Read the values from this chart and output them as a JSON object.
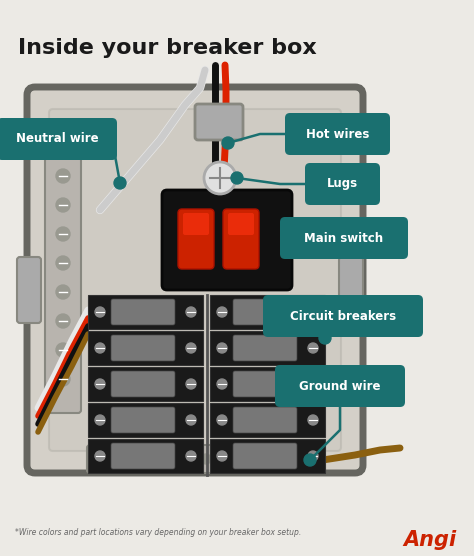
{
  "title": "Inside your breaker box",
  "bg_color": "#eceae5",
  "title_color": "#1a1a1a",
  "label_bg_color": "#1a7070",
  "label_text_color": "#ffffff",
  "box_body_color": "#d4d0c8",
  "box_border_color": "#666660",
  "box_shadow_color": "#b0aca4",
  "breaker_color": "#1a1a1a",
  "breaker_switch_color": "#888888",
  "main_switch_body": "#111111",
  "main_switch_red": "#cc2200",
  "wire_white": "#e8e8e8",
  "wire_black": "#111111",
  "wire_red": "#dd2200",
  "wire_brown": "#8B6010",
  "connector_color": "#999999",
  "lug_color": "#dddddd",
  "footnote": "*Wire colors and part locations vary depending on your breaker box setup.",
  "angi_text": "Angi",
  "angi_color": "#cc2200",
  "title_fontsize": 16,
  "label_fontsize": 8.5
}
